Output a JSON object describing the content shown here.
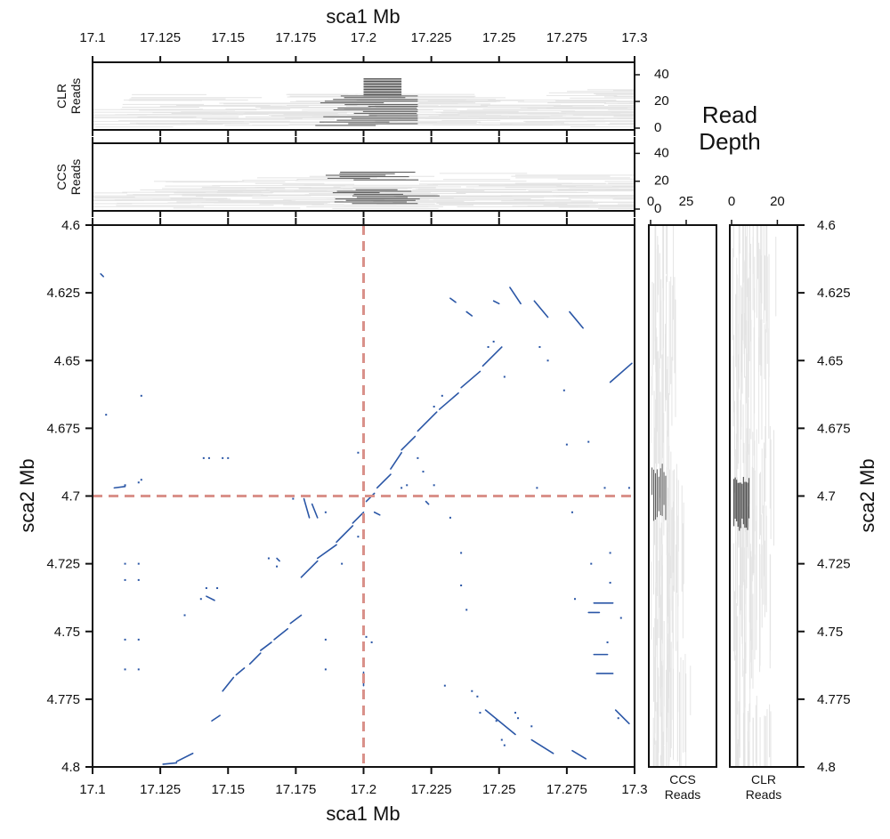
{
  "chart_data": {
    "type": "scatter",
    "x_axis": {
      "label": "sca1 Mb",
      "range": [
        17.1,
        17.3
      ],
      "ticks": [
        "17.1",
        "17.125",
        "17.15",
        "17.175",
        "17.2",
        "17.225",
        "17.25",
        "17.275",
        "17.3"
      ]
    },
    "y_axis": {
      "label": "sca2 Mb",
      "range": [
        4.6,
        4.8
      ],
      "ticks": [
        "4.6",
        "4.625",
        "4.65",
        "4.675",
        "4.7",
        "4.725",
        "4.75",
        "4.775",
        "4.8"
      ]
    },
    "marker": {
      "x": 17.2,
      "y": 4.7,
      "color": "#d9918a"
    },
    "dot_color": "#2a56a6",
    "panels": {
      "clr_top": {
        "label_line1": "CLR",
        "label_line2": "Reads",
        "depth_ticks": [
          "0",
          "20",
          "40"
        ],
        "depth_max": 48
      },
      "ccs_top": {
        "label_line1": "CCS",
        "label_line2": "Reads",
        "depth_ticks": [
          "0",
          "20",
          "40"
        ],
        "depth_max": 46
      },
      "ccs_side": {
        "label_line1": "CCS",
        "label_line2": "Reads",
        "depth_ticks": [
          "0",
          "25"
        ],
        "depth_max": 45
      },
      "clr_side": {
        "label_line1": "CLR",
        "label_line2": "Reads",
        "depth_ticks": [
          "0",
          "20"
        ],
        "depth_max": 28
      }
    },
    "depth_title_line1": "Read",
    "depth_title_line2": "Depth",
    "read_color": "#e4e4e4",
    "highlight_color": "#555555",
    "segments": [
      [
        17.103,
        4.618,
        17.104,
        4.619
      ],
      [
        17.126,
        4.799,
        17.131,
        4.7985
      ],
      [
        17.131,
        4.798,
        17.137,
        4.795
      ],
      [
        17.144,
        4.783,
        17.147,
        4.781
      ],
      [
        17.148,
        4.772,
        17.152,
        4.767
      ],
      [
        17.153,
        4.766,
        17.156,
        4.7635
      ],
      [
        17.158,
        4.762,
        17.162,
        4.758
      ],
      [
        17.162,
        4.757,
        17.166,
        4.754
      ],
      [
        17.167,
        4.753,
        17.172,
        4.749
      ],
      [
        17.173,
        4.747,
        17.177,
        4.744
      ],
      [
        17.177,
        4.73,
        17.183,
        4.724
      ],
      [
        17.183,
        4.723,
        17.19,
        4.718
      ],
      [
        17.19,
        4.717,
        17.196,
        4.711
      ],
      [
        17.196,
        4.71,
        17.2,
        4.706
      ],
      [
        17.201,
        4.702,
        17.204,
        4.699
      ],
      [
        17.205,
        4.697,
        17.21,
        4.692
      ],
      [
        17.21,
        4.69,
        17.214,
        4.684
      ],
      [
        17.214,
        4.683,
        17.219,
        4.678
      ],
      [
        17.22,
        4.676,
        17.227,
        4.669
      ],
      [
        17.228,
        4.668,
        17.235,
        4.662
      ],
      [
        17.236,
        4.66,
        17.243,
        4.654
      ],
      [
        17.244,
        4.652,
        17.251,
        4.645
      ],
      [
        17.232,
        4.627,
        17.234,
        4.6285
      ],
      [
        17.238,
        4.632,
        17.24,
        4.6335
      ],
      [
        17.248,
        4.628,
        17.25,
        4.629
      ],
      [
        17.254,
        4.623,
        17.258,
        4.629
      ],
      [
        17.263,
        4.628,
        17.268,
        4.634
      ],
      [
        17.276,
        4.632,
        17.281,
        4.638
      ],
      [
        17.291,
        4.658,
        17.299,
        4.651
      ],
      [
        17.245,
        4.779,
        17.256,
        4.788
      ],
      [
        17.262,
        4.79,
        17.27,
        4.795
      ],
      [
        17.277,
        4.794,
        17.282,
        4.797
      ],
      [
        17.293,
        4.779,
        17.298,
        4.784
      ],
      [
        17.283,
        4.743,
        17.287,
        4.743
      ],
      [
        17.285,
        4.7395,
        17.292,
        4.7395
      ],
      [
        17.286,
        4.7655,
        17.292,
        4.7655
      ],
      [
        17.285,
        4.7585,
        17.29,
        4.7585
      ],
      [
        17.108,
        4.697,
        17.112,
        4.6965
      ],
      [
        17.178,
        4.701,
        17.18,
        4.708
      ],
      [
        17.181,
        4.703,
        17.183,
        4.708
      ],
      [
        17.168,
        4.723,
        17.169,
        4.724
      ],
      [
        17.142,
        4.737,
        17.145,
        4.7385
      ],
      [
        17.2,
        4.765,
        17.2,
        4.77
      ],
      [
        17.223,
        4.702,
        17.224,
        4.703
      ],
      [
        17.204,
        4.706,
        17.206,
        4.707
      ]
    ],
    "points": [
      [
        17.105,
        4.67
      ],
      [
        17.112,
        4.696
      ],
      [
        17.117,
        4.695
      ],
      [
        17.112,
        4.725
      ],
      [
        17.117,
        4.725
      ],
      [
        17.112,
        4.731
      ],
      [
        17.117,
        4.731
      ],
      [
        17.112,
        4.753
      ],
      [
        17.117,
        4.753
      ],
      [
        17.112,
        4.764
      ],
      [
        17.117,
        4.764
      ],
      [
        17.118,
        4.663
      ],
      [
        17.141,
        4.686
      ],
      [
        17.143,
        4.686
      ],
      [
        17.148,
        4.686
      ],
      [
        17.15,
        4.686
      ],
      [
        17.142,
        4.734
      ],
      [
        17.146,
        4.734
      ],
      [
        17.14,
        4.738
      ],
      [
        17.165,
        4.723
      ],
      [
        17.168,
        4.726
      ],
      [
        17.174,
        4.701
      ],
      [
        17.186,
        4.706
      ],
      [
        17.186,
        4.753
      ],
      [
        17.186,
        4.764
      ],
      [
        17.198,
        4.684
      ],
      [
        17.201,
        4.752
      ],
      [
        17.203,
        4.754
      ],
      [
        17.2,
        4.76
      ],
      [
        17.214,
        4.697
      ],
      [
        17.216,
        4.696
      ],
      [
        17.222,
        4.691
      ],
      [
        17.226,
        4.696
      ],
      [
        17.232,
        4.708
      ],
      [
        17.236,
        4.721
      ],
      [
        17.236,
        4.733
      ],
      [
        17.238,
        4.742
      ],
      [
        17.24,
        4.772
      ],
      [
        17.242,
        4.774
      ],
      [
        17.243,
        4.78
      ],
      [
        17.249,
        4.783
      ],
      [
        17.251,
        4.79
      ],
      [
        17.252,
        4.792
      ],
      [
        17.256,
        4.78
      ],
      [
        17.257,
        4.782
      ],
      [
        17.262,
        4.785
      ],
      [
        17.264,
        4.697
      ],
      [
        17.274,
        4.661
      ],
      [
        17.277,
        4.706
      ],
      [
        17.278,
        4.738
      ],
      [
        17.291,
        4.721
      ],
      [
        17.291,
        4.732
      ],
      [
        17.294,
        4.782
      ],
      [
        17.295,
        4.745
      ],
      [
        17.298,
        4.697
      ],
      [
        17.246,
        4.645
      ],
      [
        17.248,
        4.643
      ],
      [
        17.265,
        4.645
      ],
      [
        17.268,
        4.65
      ],
      [
        17.283,
        4.68
      ],
      [
        17.284,
        4.725
      ],
      [
        17.289,
        4.697
      ],
      [
        17.29,
        4.754
      ],
      [
        17.252,
        4.656
      ],
      [
        17.275,
        4.681
      ],
      [
        17.226,
        4.667
      ],
      [
        17.229,
        4.663
      ],
      [
        17.195,
        4.7
      ],
      [
        17.198,
        4.715
      ],
      [
        17.192,
        4.725
      ],
      [
        17.236,
        4.8
      ],
      [
        17.23,
        4.77
      ],
      [
        17.134,
        4.744
      ],
      [
        17.118,
        4.694
      ],
      [
        17.22,
        4.686
      ]
    ]
  }
}
